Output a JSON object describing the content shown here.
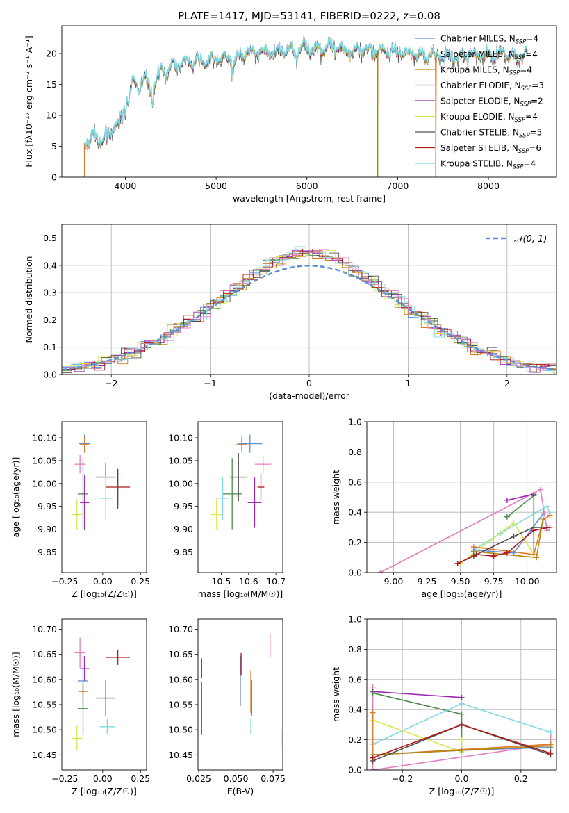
{
  "figure": {
    "title": "PLATE=1417, MJD=53141, FIBERID=0222, z=0.08"
  },
  "colors": {
    "Chabrier MILES": "#5b8fd6",
    "Salpeter MILES": "#e07b28",
    "Kroupa MILES": "#b8860b",
    "Chabrier ELODIE": "#4a8a4a",
    "Salpeter ELODIE": "#9b27b0",
    "Kroupa ELODIE": "#d9e84a",
    "Chabrier STELIB": "#505050",
    "Salpeter STELIB": "#b01818",
    "Kroupa STELIB": "#7fd9e0",
    "normal_curve": "#5b8fd6",
    "pink": "#e27fbf"
  },
  "legend": [
    {
      "model": "Chabrier MILES",
      "prefix": "Chabrier MILES, N",
      "sub": "SSP",
      "suffix": "=4"
    },
    {
      "model": "Salpeter MILES",
      "prefix": "Salpeter MILES, N",
      "sub": "SSP",
      "suffix": "=4"
    },
    {
      "model": "Kroupa MILES",
      "prefix": "Kroupa MILES, N",
      "sub": "SSP",
      "suffix": "=4"
    },
    {
      "model": "Chabrier ELODIE",
      "prefix": "Chabrier ELODIE, N",
      "sub": "SSP",
      "suffix": "=3"
    },
    {
      "model": "Salpeter ELODIE",
      "prefix": "Salpeter ELODIE, N",
      "sub": "SSP",
      "suffix": "=2"
    },
    {
      "model": "Kroupa ELODIE",
      "prefix": "Kroupa ELODIE, N",
      "sub": "SSP",
      "suffix": "=4"
    },
    {
      "model": "Chabrier STELIB",
      "prefix": "Chabrier STELIB, N",
      "sub": "SSP",
      "suffix": "=5"
    },
    {
      "model": "Salpeter STELIB",
      "prefix": "Salpeter STELIB, N",
      "sub": "SSP",
      "suffix": "=6"
    },
    {
      "model": "Kroupa STELIB",
      "prefix": "Kroupa STELIB, N",
      "sub": "SSP",
      "suffix": "=4"
    }
  ],
  "chart_data": [
    {
      "id": "spectrum",
      "type": "line",
      "xlabel": "wavelength [Angstrom, rest frame]",
      "ylabel": "Flux [fλ10⁻¹⁷ erg cm⁻² s⁻¹ A⁻¹]",
      "xlim": [
        3300,
        8750
      ],
      "ylim": [
        0,
        24.5
      ],
      "xticks": [
        4000,
        5000,
        6000,
        7000,
        8000
      ],
      "yticks": [
        0,
        5,
        10,
        15,
        20
      ],
      "grid": false,
      "legend_position": "top-right",
      "continuum": {
        "x": [
          3550,
          3650,
          3750,
          3850,
          3950,
          4000,
          4100,
          4200,
          4300,
          4400,
          4500,
          4600,
          4700,
          4800,
          4900,
          5000,
          5100,
          5200,
          5300,
          5400,
          5500,
          5600,
          5700,
          5800,
          5900,
          6000,
          6200,
          6400,
          6600,
          6800,
          7000,
          7200,
          7400,
          7600,
          7800,
          8000,
          8200,
          8400
        ],
        "y": [
          5.5,
          6.5,
          5.8,
          7.5,
          9.5,
          12,
          15,
          15.5,
          14.5,
          17,
          18,
          18.5,
          18.5,
          18.7,
          18.6,
          19,
          19.3,
          19,
          20,
          20,
          20,
          20.2,
          20.3,
          20.5,
          21,
          21,
          20.8,
          20.6,
          20.6,
          20.5,
          20.3,
          20,
          19.5,
          19.2,
          19.8,
          19.8,
          19.8,
          19.6
        ]
      },
      "absorption_lines": [
        {
          "wavelength": 3934,
          "depth": 2.5
        },
        {
          "wavelength": 3969,
          "depth": 2.5
        },
        {
          "wavelength": 4300,
          "depth": 2.5
        },
        {
          "wavelength": 5175,
          "depth": 3.0
        },
        {
          "wavelength": 5890,
          "depth": 2.5
        }
      ],
      "spikes_to_zero": [
        {
          "model": "Salpeter MILES",
          "wavelength": 3550
        },
        {
          "model": "Kroupa MILES",
          "wavelength": 6780
        },
        {
          "model": "Salpeter MILES",
          "wavelength": 7420
        }
      ]
    },
    {
      "id": "residuals",
      "type": "histogram",
      "xlabel": "(data-model)/error",
      "ylabel": "Normed distribution",
      "xlim": [
        -2.5,
        2.5
      ],
      "ylim": [
        0,
        0.55
      ],
      "xticks": [
        -2,
        -1,
        0,
        1,
        2
      ],
      "yticks": [
        0.0,
        0.1,
        0.2,
        0.3,
        0.4,
        0.5
      ],
      "grid": true,
      "bin_width": 0.1,
      "reference_curve": {
        "label": "𝒩(0, 1)",
        "mean": 0,
        "sigma": 1
      },
      "legend_position": "top-right"
    },
    {
      "id": "age-vs-Z",
      "type": "errorbar",
      "xlabel": "Z [log₁₀(Z/Z☉)]",
      "ylabel": "age  [log₁₀(age/yr)]",
      "xlim": [
        -0.27,
        0.29
      ],
      "ylim": [
        9.805,
        10.135
      ],
      "xticks": [
        -0.25,
        0.0,
        0.25
      ],
      "yticks": [
        9.85,
        9.9,
        9.95,
        10.0,
        10.05,
        10.1
      ],
      "points": [
        {
          "model": "Chabrier MILES",
          "x": -0.12,
          "y": 10.087,
          "xerr": 0.07,
          "yerr": 0.04
        },
        {
          "model": "Salpeter MILES",
          "x": -0.12,
          "y": 10.085,
          "xerr": 0.06,
          "yerr": 0.035
        },
        {
          "model": "Kroupa ELODIE",
          "x": -0.17,
          "y": 9.932,
          "xerr": 0.07,
          "yerr": 0.068
        },
        {
          "model": "Chabrier ELODIE",
          "x": -0.13,
          "y": 9.977,
          "xerr": 0.07,
          "yerr": 0.157
        },
        {
          "model": "Salpeter ELODIE",
          "x": -0.12,
          "y": 9.958,
          "xerr": 0.06,
          "yerr": 0.12
        },
        {
          "model": "Chabrier STELIB",
          "x": 0.02,
          "y": 10.014,
          "xerr": 0.13,
          "yerr": 0.06
        },
        {
          "model": "Salpeter STELIB",
          "x": 0.1,
          "y": 9.992,
          "xerr": 0.16,
          "yerr": 0.08
        },
        {
          "model": "Kroupa STELIB",
          "x": 0.02,
          "y": 9.968,
          "xerr": 0.1,
          "yerr": 0.095
        },
        {
          "model": "pink",
          "x": -0.15,
          "y": 10.042,
          "xerr": 0.07,
          "yerr": 0.04
        },
        {
          "model": "Chabrier STELIB",
          "x": 0.1,
          "y": 9.985,
          "xerr": 0.0,
          "yerr": 0.08
        }
      ]
    },
    {
      "id": "age-vs-mass",
      "type": "errorbar",
      "xlabel": "mass [log₁₀(M/M☉)]",
      "ylabel": "",
      "xlim": [
        10.415,
        10.725
      ],
      "ylim": [
        9.805,
        10.135
      ],
      "xticks": [
        10.5,
        10.6,
        10.7
      ],
      "yticks": [
        9.85,
        9.9,
        9.95,
        10.0,
        10.05,
        10.1
      ],
      "points": [
        {
          "model": "Chabrier MILES",
          "x": 10.605,
          "y": 10.087,
          "xerr": 0.09,
          "yerr": 0.04
        },
        {
          "model": "Salpeter MILES",
          "x": 10.575,
          "y": 10.085,
          "xerr": 0.04,
          "yerr": 0.035
        },
        {
          "model": "Kroupa ELODIE",
          "x": 10.483,
          "y": 9.932,
          "xerr": 0.045,
          "yerr": 0.068
        },
        {
          "model": "Chabrier ELODIE",
          "x": 10.54,
          "y": 9.977,
          "xerr": 0.07,
          "yerr": 0.157
        },
        {
          "model": "Salpeter ELODIE",
          "x": 10.622,
          "y": 9.958,
          "xerr": 0.05,
          "yerr": 0.11
        },
        {
          "model": "Chabrier STELIB",
          "x": 10.563,
          "y": 10.014,
          "xerr": 0.065,
          "yerr": 0.105
        },
        {
          "model": "Salpeter STELIB",
          "x": 10.645,
          "y": 9.992,
          "xerr": 0.025,
          "yerr": 0.06
        },
        {
          "model": "Kroupa STELIB",
          "x": 10.505,
          "y": 9.968,
          "xerr": 0.05,
          "yerr": 0.095
        },
        {
          "model": "pink",
          "x": 10.653,
          "y": 10.042,
          "xerr": 0.06,
          "yerr": 0.035
        }
      ]
    },
    {
      "id": "weight-vs-age",
      "type": "line",
      "xlabel": "age  [log₁₀(age/yr)]",
      "ylabel": "mass weight",
      "xlim": [
        8.8,
        10.22
      ],
      "ylim": [
        0,
        1.0
      ],
      "xticks": [
        9.0,
        9.25,
        9.5,
        9.75,
        10.0
      ],
      "yticks": [
        0.0,
        0.2,
        0.4,
        0.6,
        0.8,
        1.0
      ],
      "grid": true,
      "series": [
        {
          "model": "pink",
          "x": [
            8.9,
            10.1,
            10.15
          ],
          "y": [
            0.0,
            0.55,
            0.28
          ]
        },
        {
          "model": "Salpeter ELODIE",
          "x": [
            9.85,
            10.05
          ],
          "y": [
            0.48,
            0.52
          ]
        },
        {
          "model": "Chabrier ELODIE",
          "x": [
            9.85,
            10.05,
            10.05
          ],
          "y": [
            0.37,
            0.51,
            0.12
          ]
        },
        {
          "model": "Kroupa STELIB",
          "x": [
            9.6,
            9.8,
            10.15,
            10.17
          ],
          "y": [
            0.15,
            0.26,
            0.44,
            0.39
          ]
        },
        {
          "model": "Kroupa ELODIE",
          "x": [
            9.5,
            9.9,
            10.05
          ],
          "y": [
            0.06,
            0.33,
            0.12
          ]
        },
        {
          "model": "Salpeter MILES",
          "x": [
            9.6,
            10.05,
            10.12,
            10.17
          ],
          "y": [
            0.17,
            0.12,
            0.35,
            0.38
          ]
        },
        {
          "model": "Kroupa MILES",
          "x": [
            9.6,
            10.07,
            10.12
          ],
          "y": [
            0.14,
            0.1,
            0.36
          ]
        },
        {
          "model": "Chabrier MILES",
          "x": [
            9.6,
            9.9,
            10.12
          ],
          "y": [
            0.15,
            0.13,
            0.39
          ]
        },
        {
          "model": "Chabrier STELIB",
          "x": [
            9.48,
            9.6,
            9.9,
            10.05,
            10.15
          ],
          "y": [
            0.06,
            0.11,
            0.24,
            0.3,
            0.3
          ]
        },
        {
          "model": "Salpeter STELIB",
          "x": [
            9.48,
            9.62,
            9.75,
            9.85,
            10.05,
            10.17
          ],
          "y": [
            0.06,
            0.12,
            0.11,
            0.13,
            0.28,
            0.3
          ]
        }
      ]
    },
    {
      "id": "mass-vs-Z",
      "type": "errorbar",
      "xlabel": "Z [log₁₀(Z/Z☉)]",
      "ylabel": "mass [log₁₀(M/M☉)]",
      "xlim": [
        -0.27,
        0.29
      ],
      "ylim": [
        10.42,
        10.72
      ],
      "xticks": [
        -0.25,
        0.0,
        0.25
      ],
      "yticks": [
        10.45,
        10.5,
        10.55,
        10.6,
        10.65,
        10.7
      ],
      "points": [
        {
          "model": "Chabrier MILES",
          "x": -0.13,
          "y": 10.597,
          "xerr": 0.07,
          "yerr": 0.1
        },
        {
          "model": "Salpeter MILES",
          "x": -0.13,
          "y": 10.576,
          "xerr": 0.06,
          "yerr": 0.025
        },
        {
          "model": "Kroupa ELODIE",
          "x": -0.17,
          "y": 10.483,
          "xerr": 0.07,
          "yerr": 0.05
        },
        {
          "model": "Chabrier ELODIE",
          "x": -0.13,
          "y": 10.542,
          "xerr": 0.07,
          "yerr": 0.105
        },
        {
          "model": "Salpeter ELODIE",
          "x": -0.12,
          "y": 10.622,
          "xerr": 0.06,
          "yerr": 0.05
        },
        {
          "model": "Chabrier STELIB",
          "x": 0.02,
          "y": 10.563,
          "xerr": 0.13,
          "yerr": 0.07
        },
        {
          "model": "Salpeter STELIB",
          "x": 0.1,
          "y": 10.644,
          "xerr": 0.16,
          "yerr": 0.03
        },
        {
          "model": "Kroupa STELIB",
          "x": 0.03,
          "y": 10.506,
          "xerr": 0.1,
          "yerr": 0.03
        },
        {
          "model": "pink",
          "x": -0.15,
          "y": 10.653,
          "xerr": 0.07,
          "yerr": 0.06
        }
      ]
    },
    {
      "id": "mass-vs-EBV",
      "type": "errorbar",
      "xlabel": "E(B-V)",
      "ylabel": "",
      "xlim": [
        0.0245,
        0.0815
      ],
      "ylim": [
        10.42,
        10.72
      ],
      "xticks": [
        0.025,
        0.05,
        0.075
      ],
      "yticks": [
        10.45,
        10.5,
        10.55,
        10.6,
        10.65,
        10.7
      ],
      "points": [
        {
          "model": "Chabrier MILES",
          "x": 0.053,
          "y": 10.597,
          "xerr": 0,
          "yerr": 0.1
        },
        {
          "model": "Salpeter MILES",
          "x": 0.06,
          "y": 10.576,
          "xerr": 0,
          "yerr": 0.085
        },
        {
          "model": "Kroupa ELODIE",
          "x": 0.0805,
          "y": 10.483,
          "xerr": 0,
          "yerr": 0.035
        },
        {
          "model": "Chabrier ELODIE",
          "x": 0.027,
          "y": 10.542,
          "xerr": 0,
          "yerr": 0.105
        },
        {
          "model": "Salpeter ELODIE",
          "x": 0.027,
          "y": 10.622,
          "xerr": 0,
          "yerr": 0.04
        },
        {
          "model": "Chabrier STELIB",
          "x": 0.0605,
          "y": 10.563,
          "xerr": 0,
          "yerr": 0.07
        },
        {
          "model": "Salpeter STELIB",
          "x": 0.0535,
          "y": 10.63,
          "xerr": 0,
          "yerr": 0.045
        },
        {
          "model": "Kroupa STELIB",
          "x": 0.06,
          "y": 10.506,
          "xerr": 0,
          "yerr": 0.03
        },
        {
          "model": "pink",
          "x": 0.073,
          "y": 10.668,
          "xerr": 0,
          "yerr": 0.045
        }
      ]
    },
    {
      "id": "weight-vs-Z",
      "type": "line",
      "xlabel": "Z [log₁₀(Z/Z☉)]",
      "ylabel": "mass weight",
      "xlim": [
        -0.32,
        0.32
      ],
      "ylim": [
        0,
        1.0
      ],
      "xticks": [
        -0.2,
        0.0,
        0.2
      ],
      "yticks": [
        0.0,
        0.2,
        0.4,
        0.6,
        0.8,
        1.0
      ],
      "grid": true,
      "series": [
        {
          "model": "pink",
          "x": [
            -0.3,
            -0.3,
            0.3,
            0.3
          ],
          "y": [
            0.55,
            0.0,
            0.17,
            0.25
          ]
        },
        {
          "model": "Salpeter ELODIE",
          "x": [
            -0.3,
            0.0
          ],
          "y": [
            0.52,
            0.48
          ]
        },
        {
          "model": "Chabrier ELODIE",
          "x": [
            -0.3,
            0.0,
            0.0
          ],
          "y": [
            0.51,
            0.37,
            0.12
          ]
        },
        {
          "model": "Kroupa STELIB",
          "x": [
            -0.3,
            0.0,
            0.3
          ],
          "y": [
            0.17,
            0.44,
            0.25
          ]
        },
        {
          "model": "Kroupa ELODIE",
          "x": [
            -0.3,
            0.0,
            0.0
          ],
          "y": [
            0.33,
            0.12,
            0.2
          ]
        },
        {
          "model": "Salpeter MILES",
          "x": [
            -0.3,
            -0.3,
            0.3
          ],
          "y": [
            0.38,
            0.1,
            0.17
          ]
        },
        {
          "model": "Chabrier MILES",
          "x": [
            -0.3,
            0.0,
            0.3
          ],
          "y": [
            0.1,
            0.13,
            0.15
          ]
        },
        {
          "model": "Kroupa MILES",
          "x": [
            -0.3,
            0.3
          ],
          "y": [
            0.1,
            0.16
          ]
        },
        {
          "model": "Chabrier STELIB",
          "x": [
            -0.3,
            0.0,
            0.3
          ],
          "y": [
            0.06,
            0.3,
            0.1
          ]
        },
        {
          "model": "Salpeter STELIB",
          "x": [
            -0.3,
            0.0,
            0.3
          ],
          "y": [
            0.08,
            0.3,
            0.11
          ]
        }
      ]
    }
  ]
}
